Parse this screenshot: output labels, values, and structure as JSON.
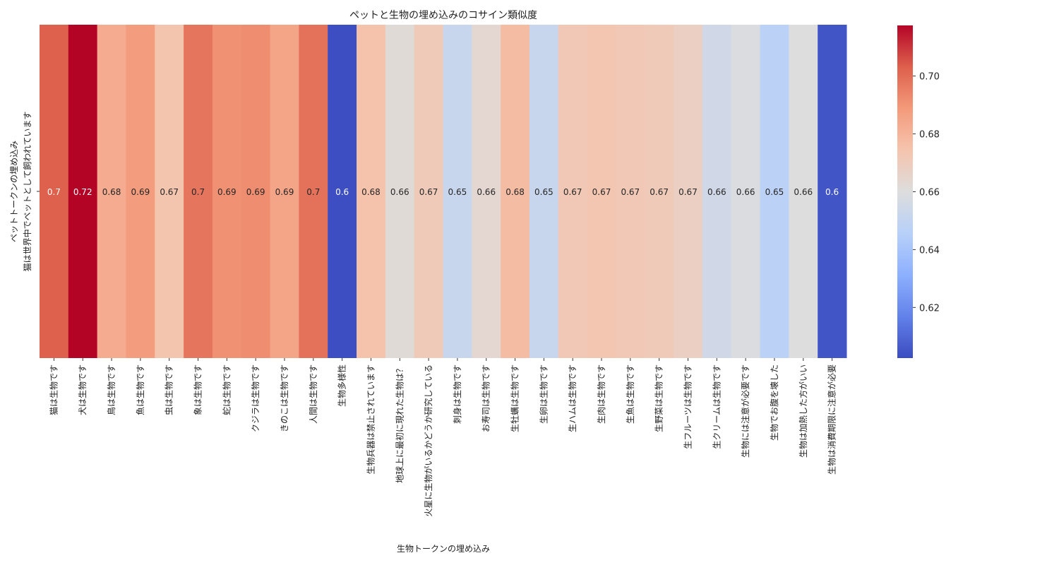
{
  "chart_data": {
    "type": "heatmap",
    "title": "ペットと生物の埋め込みのコサイン類似度",
    "xlabel": "生物トークンの埋め込み",
    "ylabel": "ペットトークンの埋め込み",
    "y_categories": [
      "猫は世界中でペットとして飼われています"
    ],
    "x_categories": [
      "猫は生物です",
      "犬は生物です",
      "鳥は生物です",
      "魚は生物です",
      "虫は生物です",
      "象は生物です",
      "蛇は生物です",
      "クジラは生物です",
      "きのこは生物です",
      "人間は生物です",
      "生物多様性",
      "生物兵器は禁止されています",
      "地球上に最初に現れた生物は？",
      "火星に生物がいるかどうか研究している",
      "刺身は生物です",
      "お寿司は生物です",
      "生牡蠣は生物です",
      "生卵は生物です",
      "生ハムは生物です",
      "生肉は生物です",
      "生魚は生物です",
      "生野菜は生物です",
      "生フルーツは生物です",
      "生クリームは生物です",
      "生物には注意が必要です",
      "生物でお腹を壊した",
      "生物は加熱した方がいい",
      "生物は消費期限に注意が必要"
    ],
    "values": [
      [
        0.703,
        0.718,
        0.683,
        0.688,
        0.674,
        0.698,
        0.691,
        0.692,
        0.685,
        0.699,
        0.603,
        0.675,
        0.662,
        0.671,
        0.652,
        0.664,
        0.677,
        0.652,
        0.672,
        0.673,
        0.672,
        0.671,
        0.668,
        0.655,
        0.659,
        0.647,
        0.66,
        0.605
      ]
    ],
    "annotated": true,
    "colormap": "coolwarm",
    "colorbar": {
      "range": [
        0.6025,
        0.7175
      ],
      "ticks": [
        "0.62",
        "0.64",
        "0.66",
        "0.68",
        "0.70"
      ]
    }
  }
}
